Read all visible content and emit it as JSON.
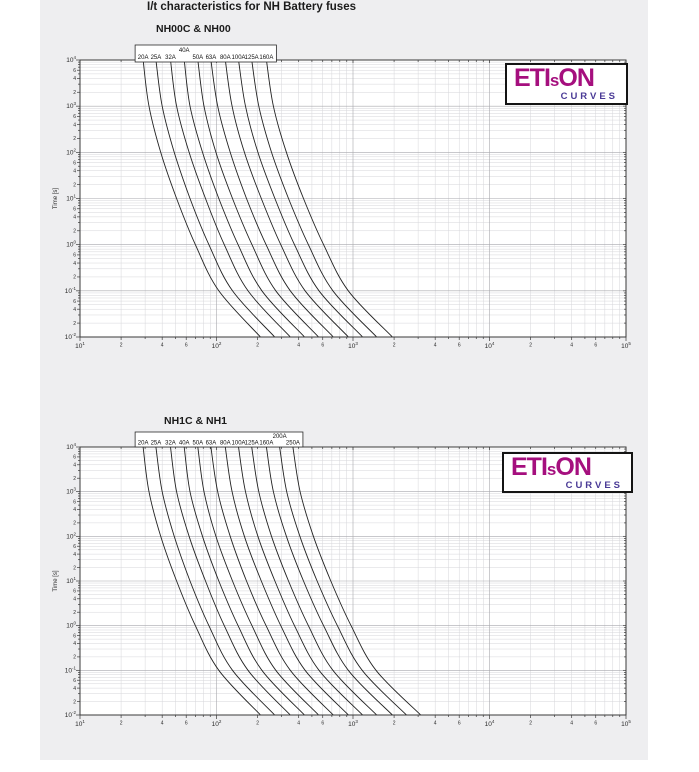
{
  "page": {
    "title": "I/t characteristics for NH Battery fuses"
  },
  "logo": {
    "brand_prefix": "ETI",
    "brand_small": "s",
    "brand_suffix": "ON",
    "subtitle": "CURVES",
    "brand_color": "#a50f7e",
    "subtitle_color": "#4a3a96"
  },
  "chart_data": [
    {
      "type": "line",
      "title": "NH00C & NH00",
      "xlabel": "",
      "ylabel": "Time [s]",
      "xlim": [
        10,
        100000
      ],
      "ylim": [
        0.01,
        10000
      ],
      "x_ticks": [
        "10^1",
        "10^2",
        "10^3",
        "10^4",
        "10^5"
      ],
      "y_ticks": [
        "10^4",
        "10^3",
        "10^2",
        "10^1",
        "10^0",
        "10^-1",
        "10^-2"
      ],
      "minor_tick_labels": [
        2,
        4,
        6
      ],
      "grid": true,
      "legend_position": "top",
      "line_color": "#222222",
      "times_s": [
        10000,
        1000,
        100,
        10,
        1,
        0.1,
        0.01
      ],
      "series": [
        {
          "name": "20A",
          "raised": false,
          "currents_a": [
            29,
            32,
            39,
            51,
            70,
            104,
            210
          ]
        },
        {
          "name": "25A",
          "raised": false,
          "currents_a": [
            36,
            40,
            49,
            64,
            88,
            131,
            267
          ]
        },
        {
          "name": "32A",
          "raised": false,
          "currents_a": [
            46,
            51,
            63,
            83,
            114,
            170,
            347
          ]
        },
        {
          "name": "40A",
          "raised": true,
          "currents_a": [
            58,
            64,
            79,
            104,
            144,
            215,
            441
          ]
        },
        {
          "name": "50A",
          "raised": false,
          "currents_a": [
            73,
            81,
            99,
            131,
            182,
            272,
            560
          ]
        },
        {
          "name": "63A",
          "raised": false,
          "currents_a": [
            91,
            102,
            126,
            166,
            231,
            347,
            717
          ]
        },
        {
          "name": "80A",
          "raised": false,
          "currents_a": [
            116,
            130,
            160,
            213,
            296,
            446,
            926
          ]
        },
        {
          "name": "100A",
          "raised": false,
          "currents_a": [
            145,
            163,
            201,
            268,
            373,
            564,
            1175
          ]
        },
        {
          "name": "125A",
          "raised": false,
          "currents_a": [
            181,
            204,
            253,
            337,
            471,
            712,
            1492
          ]
        },
        {
          "name": "160A",
          "raised": false,
          "currents_a": [
            232,
            261,
            325,
            434,
            609,
            923,
            1943
          ]
        }
      ]
    },
    {
      "type": "line",
      "title": "NH1C & NH1",
      "xlabel": "",
      "ylabel": "Time [s]",
      "xlim": [
        10,
        100000
      ],
      "ylim": [
        0.01,
        10000
      ],
      "x_ticks": [
        "10^1",
        "10^2",
        "10^3",
        "10^4",
        "10^5"
      ],
      "y_ticks": [
        "10^4",
        "10^3",
        "10^2",
        "10^1",
        "10^0",
        "10^-1",
        "10^-2"
      ],
      "minor_tick_labels": [
        2,
        4,
        6
      ],
      "grid": true,
      "legend_position": "top",
      "line_color": "#222222",
      "times_s": [
        10000,
        1000,
        100,
        10,
        1,
        0.1,
        0.01
      ],
      "series": [
        {
          "name": "20A",
          "raised": false,
          "currents_a": [
            29,
            32,
            39,
            51,
            70,
            104,
            210
          ]
        },
        {
          "name": "25A",
          "raised": false,
          "currents_a": [
            36,
            40,
            49,
            64,
            88,
            131,
            267
          ]
        },
        {
          "name": "32A",
          "raised": false,
          "currents_a": [
            46,
            51,
            63,
            83,
            114,
            170,
            347
          ]
        },
        {
          "name": "40A",
          "raised": false,
          "currents_a": [
            58,
            64,
            79,
            104,
            144,
            215,
            441
          ]
        },
        {
          "name": "50A",
          "raised": false,
          "currents_a": [
            73,
            81,
            99,
            131,
            182,
            272,
            560
          ]
        },
        {
          "name": "63A",
          "raised": false,
          "currents_a": [
            91,
            102,
            126,
            166,
            231,
            347,
            717
          ]
        },
        {
          "name": "80A",
          "raised": false,
          "currents_a": [
            116,
            130,
            160,
            213,
            296,
            446,
            926
          ]
        },
        {
          "name": "100A",
          "raised": false,
          "currents_a": [
            145,
            163,
            201,
            268,
            373,
            564,
            1175
          ]
        },
        {
          "name": "125A",
          "raised": false,
          "currents_a": [
            181,
            204,
            253,
            337,
            471,
            712,
            1492
          ]
        },
        {
          "name": "160A",
          "raised": false,
          "currents_a": [
            232,
            261,
            325,
            434,
            609,
            923,
            1943
          ]
        },
        {
          "name": "200A",
          "raised": true,
          "currents_a": [
            290,
            327,
            408,
            546,
            768,
            1167,
            2467
          ]
        },
        {
          "name": "250A",
          "raised": false,
          "currents_a": [
            363,
            410,
            513,
            688,
            968,
            1475,
            3133
          ]
        }
      ]
    }
  ]
}
